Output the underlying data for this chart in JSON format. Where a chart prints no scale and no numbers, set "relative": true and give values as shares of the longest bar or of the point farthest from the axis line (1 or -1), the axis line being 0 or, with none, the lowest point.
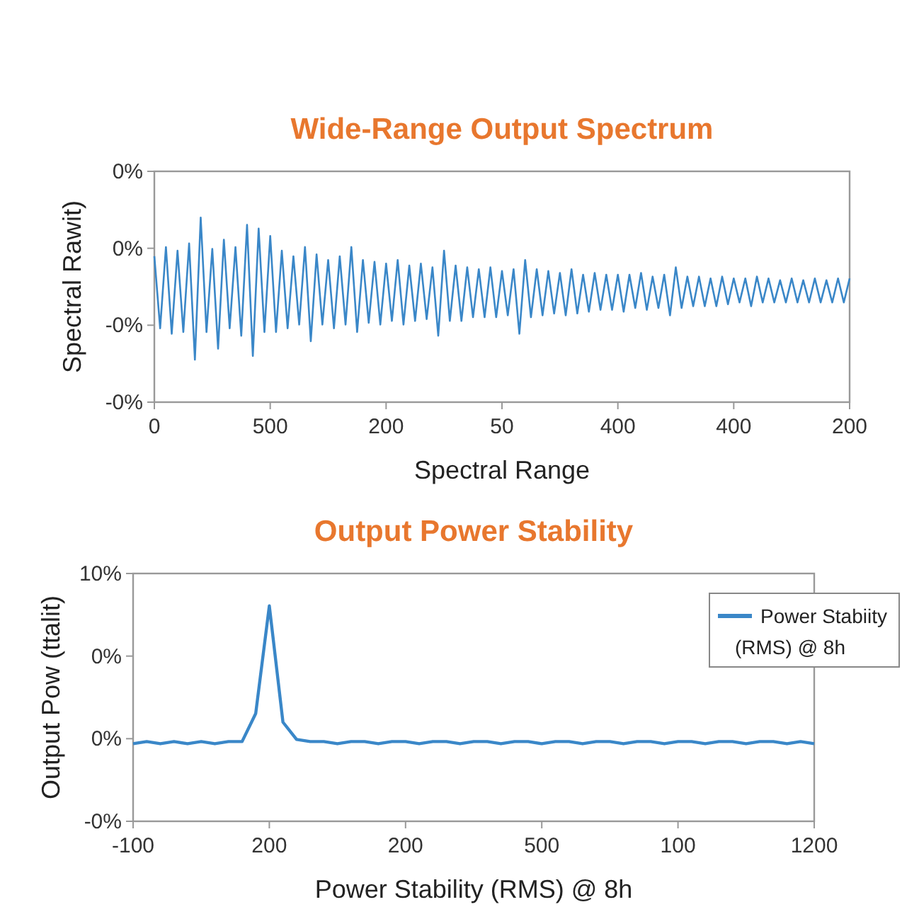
{
  "chart_data": [
    {
      "type": "line",
      "title": "Wide-Range Output Spectrum",
      "xlabel": "Spectral Range",
      "ylabel": "Spectral Rawit)",
      "relative": true,
      "annotations": [
        "-0%",
        "-0%",
        "0%",
        "0%"
      ],
      "categories": [
        "0",
        null,
        null,
        null,
        null,
        null,
        null,
        null,
        null,
        null,
        null,
        null,
        null,
        null,
        null,
        null,
        null,
        null,
        null,
        null,
        "500",
        null,
        null,
        null,
        null,
        null,
        null,
        null,
        null,
        null,
        null,
        null,
        null,
        null,
        null,
        null,
        null,
        null,
        null,
        null,
        "200",
        null,
        null,
        null,
        null,
        null,
        null,
        null,
        null,
        null,
        null,
        null,
        null,
        null,
        null,
        null,
        null,
        null,
        null,
        null,
        "50",
        null,
        null,
        null,
        null,
        null,
        null,
        null,
        null,
        null,
        null,
        null,
        null,
        null,
        null,
        null,
        null,
        null,
        null,
        null,
        "400",
        null,
        null,
        null,
        null,
        null,
        null,
        null,
        null,
        null,
        null,
        null,
        null,
        null,
        null,
        null,
        null,
        null,
        null,
        null,
        "400",
        null,
        null,
        null,
        null,
        null,
        null,
        null,
        null,
        null,
        null,
        null,
        null,
        null,
        null,
        null,
        null,
        null,
        null,
        null,
        "200"
      ],
      "series": [
        {
          "color": "#3a87c8",
          "values": [
            0.79,
            0.4,
            0.84,
            0.37,
            0.82,
            0.38,
            0.86,
            0.23,
            1,
            0.38,
            0.83,
            0.29,
            0.88,
            0.4,
            0.84,
            0.36,
            0.96,
            0.25,
            0.94,
            0.38,
            0.9,
            0.38,
            0.82,
            0.4,
            0.79,
            0.42,
            0.84,
            0.33,
            0.8,
            0.42,
            0.77,
            0.4,
            0.79,
            0.42,
            0.84,
            0.38,
            0.77,
            0.43,
            0.76,
            0.42,
            0.75,
            0.44,
            0.77,
            0.42,
            0.74,
            0.44,
            0.75,
            0.45,
            0.73,
            0.36,
            0.82,
            0.44,
            0.74,
            0.44,
            0.73,
            0.46,
            0.72,
            0.46,
            0.73,
            0.46,
            0.71,
            0.47,
            0.72,
            0.37,
            0.77,
            0.46,
            0.72,
            0.47,
            0.71,
            0.48,
            0.7,
            0.47,
            0.72,
            0.48,
            0.69,
            0.49,
            0.7,
            0.5,
            0.69,
            0.5,
            0.69,
            0.49,
            0.69,
            0.51,
            0.7,
            0.5,
            0.68,
            0.51,
            0.69,
            0.47,
            0.73,
            0.51,
            0.68,
            0.52,
            0.68,
            0.52,
            0.67,
            0.52,
            0.68,
            0.53,
            0.67,
            0.54,
            0.67,
            0.52,
            0.68,
            0.54,
            0.67,
            0.54,
            0.66,
            0.54,
            0.67,
            0.54,
            0.66,
            0.54,
            0.67,
            0.54,
            0.66,
            0.54,
            0.67,
            0.54,
            0.67
          ]
        }
      ]
    },
    {
      "type": "line",
      "title": "Output Power Stability",
      "xlabel": "Power Stability (RMS) @ 8h",
      "ylabel": "Output Pow (ttalit)",
      "relative": true,
      "annotations": [
        "-0%",
        "0%",
        "0%",
        "10%"
      ],
      "legend": "top right",
      "categories": [
        "-100",
        null,
        null,
        null,
        null,
        null,
        null,
        null,
        null,
        null,
        "200",
        null,
        null,
        null,
        null,
        null,
        null,
        null,
        null,
        null,
        "200",
        null,
        null,
        null,
        null,
        null,
        null,
        null,
        null,
        null,
        "500",
        null,
        null,
        null,
        null,
        null,
        null,
        null,
        null,
        null,
        "100",
        null,
        null,
        null,
        null,
        null,
        null,
        null,
        null,
        null,
        "1200"
      ],
      "series": [
        {
          "name": "Power Stabiity (RMS) @ 8h",
          "color": "#3a87c8",
          "values": [
            0.36,
            0.37,
            0.36,
            0.37,
            0.36,
            0.37,
            0.36,
            0.37,
            0.37,
            0.5,
            1,
            0.46,
            0.38,
            0.37,
            0.37,
            0.36,
            0.37,
            0.37,
            0.36,
            0.37,
            0.37,
            0.36,
            0.37,
            0.37,
            0.36,
            0.37,
            0.37,
            0.36,
            0.37,
            0.37,
            0.36,
            0.37,
            0.37,
            0.36,
            0.37,
            0.37,
            0.36,
            0.37,
            0.37,
            0.36,
            0.37,
            0.37,
            0.36,
            0.37,
            0.37,
            0.36,
            0.37,
            0.37,
            0.36,
            0.37,
            0.36
          ]
        }
      ]
    }
  ]
}
